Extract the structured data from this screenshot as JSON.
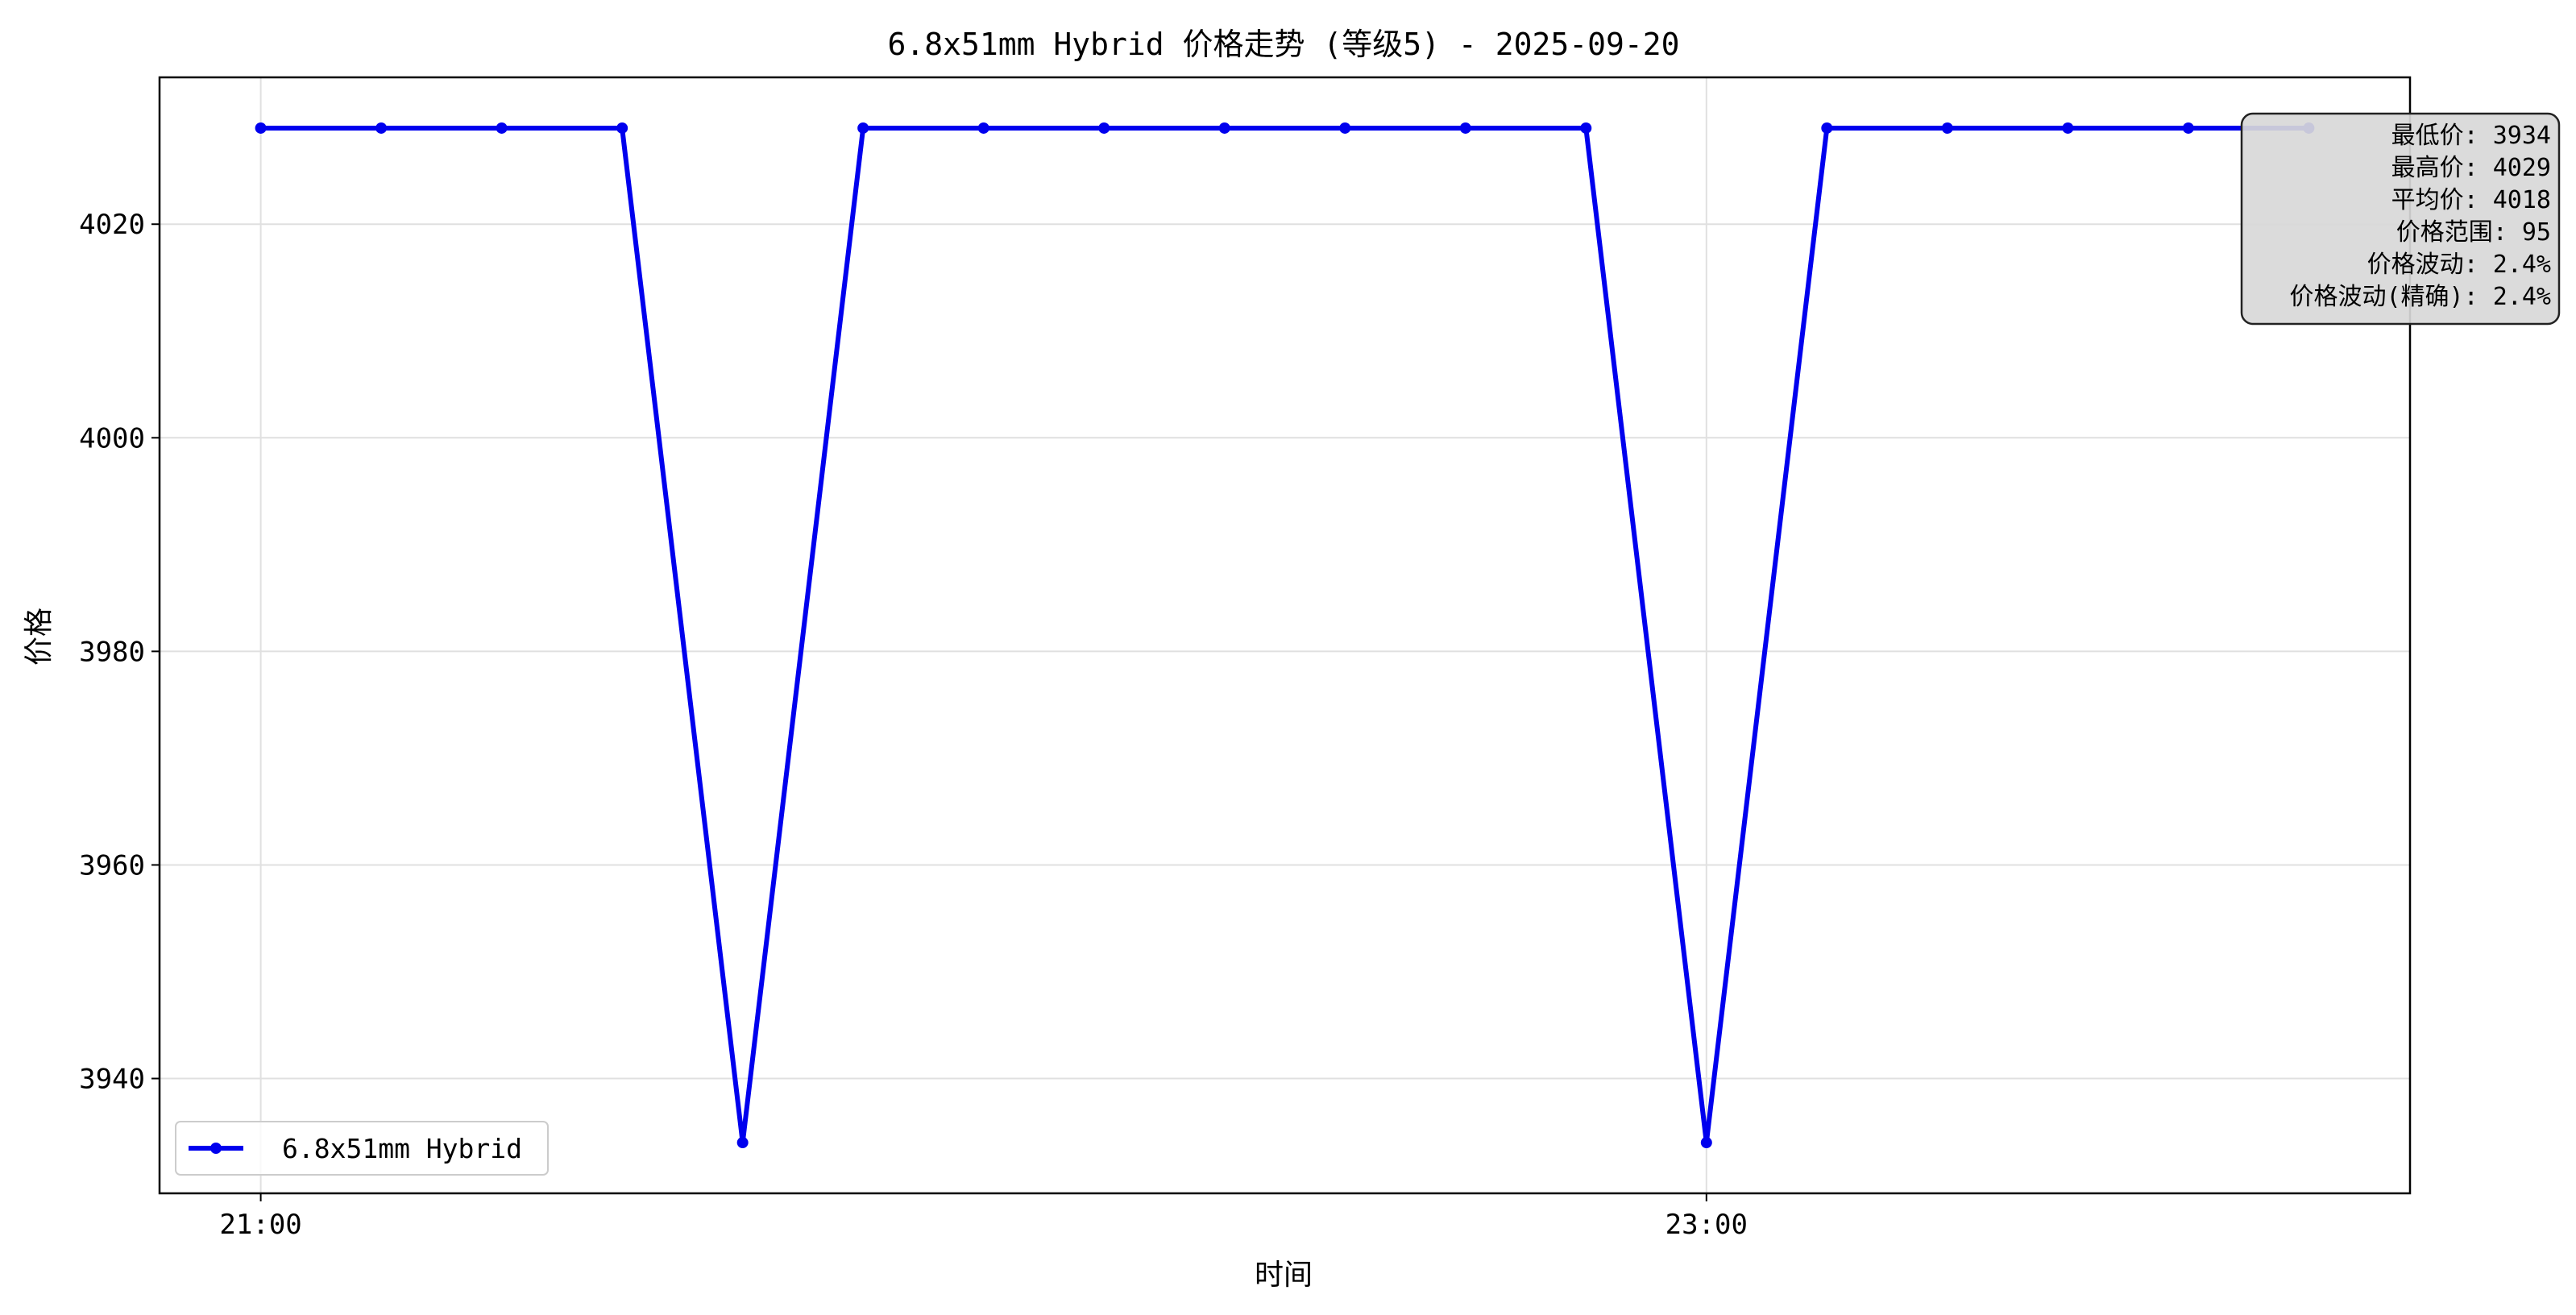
{
  "chart_data": {
    "type": "line",
    "title": "6.8x51mm Hybrid 价格走势 (等级5) - 2025-09-20",
    "xlabel": "时间",
    "ylabel": "价格",
    "x_ticks": [
      {
        "label": "21:00",
        "index": 0
      },
      {
        "label": "23:00",
        "index": 12
      }
    ],
    "y_ticks": [
      3940,
      3960,
      3980,
      4000,
      4020
    ],
    "ylim": [
      3929.25,
      4033.75
    ],
    "xlim": [
      -0.84,
      17.84
    ],
    "grid": true,
    "legend_position": "lower-left",
    "series": [
      {
        "name": "6.8x51mm Hybrid",
        "color": "#0000ee",
        "marker": "circle",
        "values": [
          4029,
          4029,
          4029,
          4029,
          3934,
          4029,
          4029,
          4029,
          4029,
          4029,
          4029,
          4029,
          3934,
          4029,
          4029,
          4029,
          4029,
          4029
        ]
      }
    ],
    "stats_box": {
      "position": "top-right",
      "lines": [
        "最低价: 3934",
        "最高价: 4029",
        "平均价: 4018",
        "价格范围: 95",
        "价格波动: 2.4%",
        "价格波动(精确): 2.4%"
      ]
    }
  }
}
